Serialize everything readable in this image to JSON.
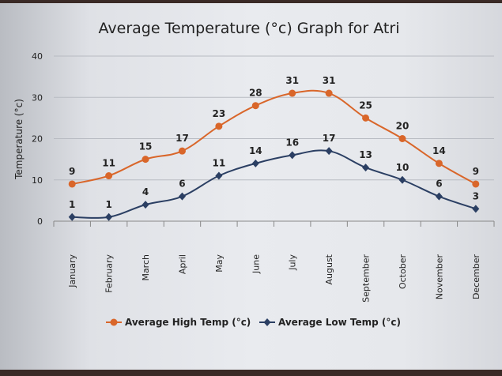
{
  "chart_data": {
    "type": "line",
    "title": "Average Temperature (°c) Graph for Atri",
    "xlabel": "",
    "ylabel": "Temperature (°c)",
    "ylim": [
      0,
      40
    ],
    "yticks": [
      0,
      10,
      20,
      30,
      40
    ],
    "grid": true,
    "legend_placement": "bottom",
    "categories": [
      "January",
      "February",
      "March",
      "April",
      "May",
      "June",
      "July",
      "August",
      "September",
      "October",
      "November",
      "December"
    ],
    "series": [
      {
        "name": "Average High Temp (°c)",
        "color": "#d9662a",
        "marker": "circle",
        "values": [
          9,
          11,
          15,
          17,
          23,
          28,
          31,
          31,
          25,
          20,
          14,
          9
        ]
      },
      {
        "name": "Average Low Temp (°c)",
        "color": "#2b3f63",
        "marker": "diamond",
        "values": [
          1,
          1,
          4,
          6,
          11,
          14,
          16,
          17,
          13,
          10,
          6,
          3
        ]
      }
    ]
  }
}
